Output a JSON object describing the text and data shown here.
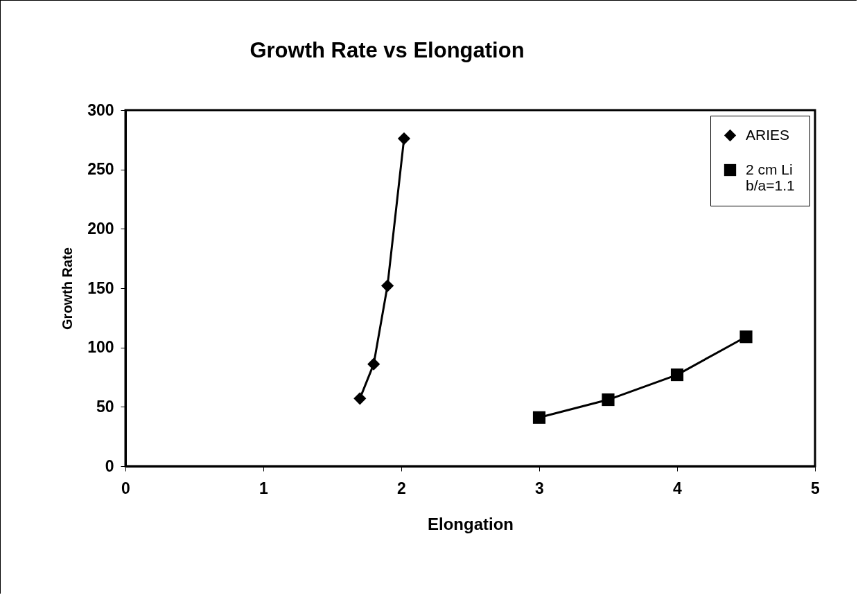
{
  "chart_data": {
    "type": "line",
    "title": "Growth  Rate  vs  Elongation",
    "xlabel": "Elongation",
    "ylabel": "Growth Rate",
    "xlim": [
      0,
      5
    ],
    "xticks": [
      0,
      1,
      2,
      3,
      4,
      5
    ],
    "ylim": [
      0,
      300
    ],
    "yticks": [
      0,
      50,
      100,
      150,
      200,
      250,
      300
    ],
    "grid": false,
    "legend": "top right",
    "line_style": "solid",
    "series": [
      {
        "name": "ARIES",
        "color": "#000000",
        "marker": "diamond",
        "x": [
          1.7,
          1.8,
          1.9,
          2.02
        ],
        "values": [
          57,
          86,
          152,
          276
        ]
      },
      {
        "name": "2 cm  Li\nb/a=1.1",
        "color": "#000000",
        "marker": "square",
        "x": [
          3,
          3.5,
          4,
          4.5
        ],
        "values": [
          41,
          56,
          77,
          109
        ]
      }
    ]
  }
}
